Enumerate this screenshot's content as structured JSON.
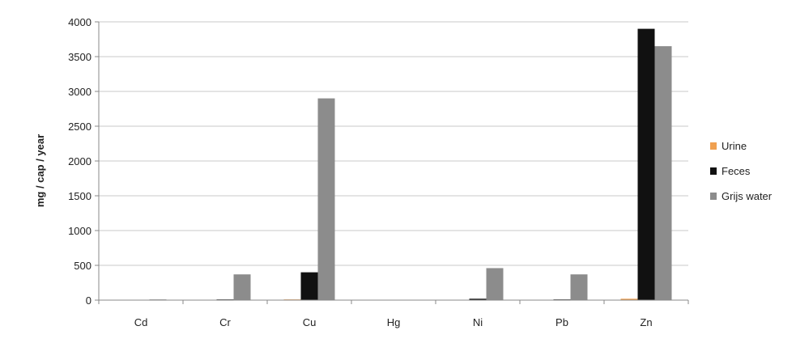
{
  "chart_data": {
    "type": "bar",
    "title": "",
    "xlabel": "",
    "ylabel": "mg / cap / year",
    "ylim": [
      0,
      4000
    ],
    "yticks": [
      0,
      500,
      1000,
      1500,
      2000,
      2500,
      3000,
      3500,
      4000
    ],
    "grid": true,
    "legend_position": "right",
    "categories": [
      "Cd",
      "Cr",
      "Cu",
      "Hg",
      "Ni",
      "Pb",
      "Zn"
    ],
    "series": [
      {
        "name": "Urine",
        "color": "#f0a050",
        "values": [
          1,
          3,
          10,
          1,
          3,
          2,
          20
        ]
      },
      {
        "name": "Feces",
        "color": "#111111",
        "values": [
          3,
          10,
          400,
          2,
          20,
          10,
          3900
        ]
      },
      {
        "name": "Grijs water",
        "color": "#8c8c8c",
        "values": [
          10,
          370,
          2900,
          5,
          460,
          370,
          3650
        ]
      }
    ]
  }
}
